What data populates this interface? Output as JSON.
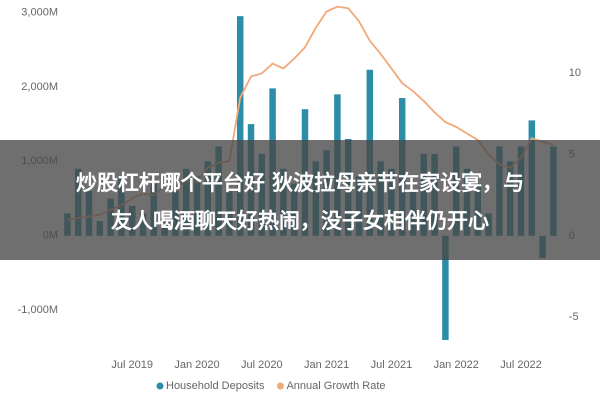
{
  "chart_data": {
    "type": "bar",
    "categories": [
      null,
      null,
      null,
      null,
      null,
      null,
      "Jul 2019",
      null,
      null,
      null,
      null,
      null,
      "Jan 2020",
      null,
      null,
      null,
      null,
      null,
      "Jul 2020",
      null,
      null,
      null,
      null,
      null,
      "Jan 2021",
      null,
      null,
      null,
      null,
      null,
      "Jul 2021",
      null,
      null,
      null,
      null,
      null,
      "Jan 2022",
      null,
      null,
      null,
      null,
      null,
      "Jul 2022",
      null,
      null,
      null
    ],
    "series": [
      {
        "name": "Household Deposits",
        "color": "#2b8ea6",
        "type": "bar",
        "values": [
          300,
          900,
          600,
          200,
          500,
          800,
          400,
          300,
          700,
          200,
          600,
          900,
          800,
          1000,
          1200,
          600,
          2950,
          1500,
          1100,
          1980,
          900,
          700,
          1700,
          1000,
          1150,
          1900,
          1300,
          800,
          2230,
          1000,
          900,
          1850,
          600,
          1100,
          1100,
          -1400,
          1200,
          900,
          700,
          300,
          1200,
          1000,
          1200,
          1550,
          -300,
          1200
        ]
      },
      {
        "name": "Annual Growth Rate",
        "color": "#f2a97a",
        "type": "line",
        "axis": "y2",
        "values": [
          1.0,
          1.1,
          1.2,
          1.3,
          1.6,
          1.9,
          2.3,
          2.6,
          2.5,
          3.1,
          3.0,
          3.4,
          3.3,
          4.2,
          4.5,
          4.6,
          8.5,
          9.8,
          10.0,
          10.6,
          10.3,
          10.9,
          11.6,
          12.8,
          13.8,
          14.1,
          14.0,
          13.2,
          12.0,
          11.2,
          10.3,
          9.4,
          8.9,
          8.3,
          7.6,
          7.0,
          6.7,
          6.3,
          5.9,
          5.0,
          4.4,
          4.2,
          4.8,
          6.0,
          5.8,
          5.6
        ]
      }
    ],
    "ylim": [
      -1400,
      3100
    ],
    "yticks": [
      {
        "value": -1000,
        "label": "-1,000M"
      },
      {
        "value": 0,
        "label": "0M"
      },
      {
        "value": 1000,
        "label": "1,000M"
      },
      {
        "value": 2000,
        "label": "2,000M"
      },
      {
        "value": 3000,
        "label": "3,000M"
      }
    ],
    "y2lim": [
      -6.4,
      14.2
    ],
    "y2ticks": [
      -5,
      0,
      5,
      10
    ],
    "grid": false,
    "legend": "bottom"
  },
  "caption": [
    "炒股杠杆哪个平台好 狄波拉母亲节在家设宴，与",
    "友人喝酒聊天好热闹，没子女相伴仍开心"
  ]
}
